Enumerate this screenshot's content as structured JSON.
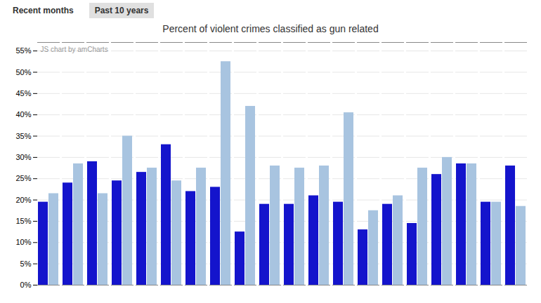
{
  "chart_data": {
    "type": "bar",
    "title": "Percent of violent crimes classified as gun related",
    "annotations": [
      "Recent months",
      "Past 10 years",
      "JS chart by amCharts"
    ],
    "categories": [
      null,
      null,
      null,
      null,
      null,
      null,
      null,
      null,
      null,
      null,
      null,
      null,
      null,
      null,
      null,
      null,
      null,
      null,
      null,
      null
    ],
    "series": [
      {
        "color": "#1414cc",
        "values": [
          19.5,
          24.0,
          29.0,
          24.5,
          26.5,
          33.0,
          22.0,
          23.0,
          12.5,
          19.0,
          19.0,
          21.0,
          19.5,
          13.0,
          19.0,
          14.5,
          26.0,
          28.5,
          19.5,
          28.0
        ]
      },
      {
        "color": "#a8c4e0",
        "values": [
          21.5,
          28.5,
          21.5,
          35.0,
          27.5,
          24.5,
          27.5,
          52.5,
          42.0,
          28.0,
          27.5,
          28.0,
          40.5,
          17.5,
          21.0,
          27.5,
          30.0,
          28.5,
          19.5,
          18.5
        ]
      }
    ],
    "ylim": [
      0,
      57
    ],
    "yticks": [
      {
        "value": 0,
        "label": "0%"
      },
      {
        "value": 5,
        "label": "5%"
      },
      {
        "value": 10,
        "label": "10%"
      },
      {
        "value": 15,
        "label": "15%"
      },
      {
        "value": 20,
        "label": "20%"
      },
      {
        "value": 25,
        "label": "25%"
      },
      {
        "value": 30,
        "label": "30%"
      },
      {
        "value": 35,
        "label": "35%"
      },
      {
        "value": 40,
        "label": "40%"
      },
      {
        "value": 45,
        "label": "45%"
      },
      {
        "value": 50,
        "label": "50%"
      },
      {
        "value": 55,
        "label": "55%"
      }
    ],
    "grid": true,
    "tick_labels": "y"
  }
}
